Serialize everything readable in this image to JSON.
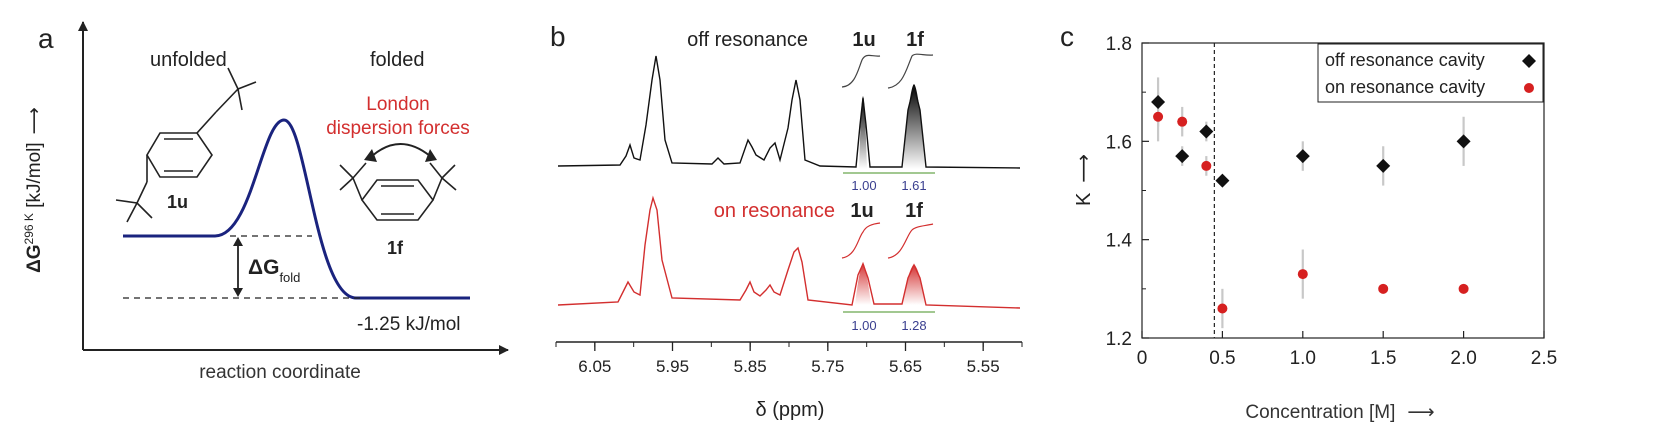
{
  "panel_a": {
    "panel_letter": "a",
    "y_axis": {
      "prefix": "ΔG",
      "superscript": "296 K",
      "unit": " [kJ/mol]",
      "arrow": "⟶"
    },
    "x_axis_label": "reaction coordinate",
    "state_unfolded": "unfolded",
    "state_folded": "folded",
    "force_label_line1": "London",
    "force_label_line2": "dispersion forces",
    "compound_unfolded": "1u",
    "compound_folded": "1f",
    "delta_g_symbol": "ΔG",
    "delta_g_subscript": "fold",
    "energy_value": "-1.25 kJ/mol",
    "colors": {
      "curve": "#1a237e",
      "highlight": "#d32f2f"
    }
  },
  "panel_b": {
    "panel_letter": "b",
    "spectrum_top": {
      "label": "off resonance",
      "peak_u": "1u",
      "peak_f": "1f",
      "integral_u": "1.00",
      "integral_f": "1.61",
      "color": "#111111"
    },
    "spectrum_bottom": {
      "label": "on resonance",
      "peak_u": "1u",
      "peak_f": "1f",
      "integral_u": "1.00",
      "integral_f": "1.28",
      "color": "#d32f2f"
    },
    "x_axis_label": "δ (ppm)",
    "x_ticks": [
      "6.05",
      "5.95",
      "5.85",
      "5.75",
      "5.65",
      "5.55"
    ],
    "integral_text_color": "#3a3f8f",
    "integral_line_color": "#6aa84f"
  },
  "chart_data": {
    "type": "scatter",
    "panel_letter": "c",
    "xlabel": "Concentration [M]",
    "xlabel_arrow": "⟶",
    "ylabel": "K",
    "ylabel_arrow": "⟶",
    "xlim": [
      0,
      2.5
    ],
    "ylim": [
      1.2,
      1.8
    ],
    "x_ticks": [
      0,
      0.5,
      1.0,
      1.5,
      2.0,
      2.5
    ],
    "x_tick_labels": [
      "0",
      "0.5",
      "1.0",
      "1.5",
      "2.0",
      "2.5"
    ],
    "y_ticks": [
      1.2,
      1.4,
      1.6,
      1.8
    ],
    "y_tick_labels": [
      "1.2",
      "1.4",
      "1.6",
      "1.8"
    ],
    "reference_line_x": 0.45,
    "legend_position": "top-right",
    "series": [
      {
        "name": "off resonance cavity",
        "marker": "diamond",
        "color": "#111111",
        "x": [
          0.1,
          0.25,
          0.4,
          0.5,
          1.0,
          1.5,
          2.0
        ],
        "y": [
          1.68,
          1.57,
          1.62,
          1.52,
          1.57,
          1.55,
          1.6
        ],
        "err": [
          0.05,
          0.02,
          0.02,
          0.01,
          0.03,
          0.04,
          0.05
        ]
      },
      {
        "name": "on resonance cavity",
        "marker": "circle",
        "color": "#d62020",
        "x": [
          0.1,
          0.25,
          0.4,
          0.5,
          1.0,
          1.5,
          2.0
        ],
        "y": [
          1.65,
          1.64,
          1.55,
          1.26,
          1.33,
          1.3,
          1.3
        ],
        "err": [
          0.05,
          0.03,
          0.02,
          0.04,
          0.05,
          0.01,
          0.01
        ]
      }
    ]
  }
}
